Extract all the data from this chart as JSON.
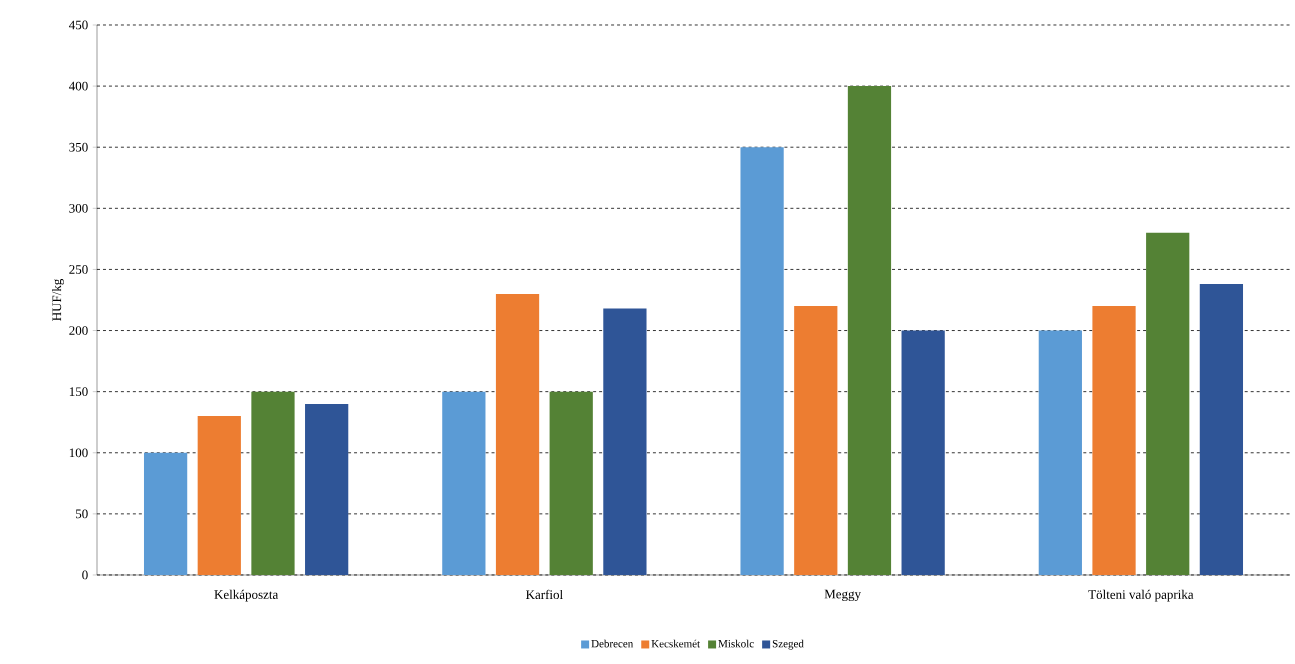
{
  "chart_data": {
    "type": "bar",
    "ylabel": "HUF/kg",
    "categories": [
      "Kelkáposzta",
      "Karfiol",
      "Meggy",
      "Tölteni való paprika"
    ],
    "series": [
      {
        "name": "Debrecen",
        "color": "#5b9bd5",
        "values": [
          100,
          150,
          350,
          200
        ]
      },
      {
        "name": "Kecskemét",
        "color": "#ed7d31",
        "values": [
          130,
          230,
          220,
          220
        ]
      },
      {
        "name": "Miskolc",
        "color": "#548235",
        "values": [
          150,
          150,
          400,
          280
        ]
      },
      {
        "name": "Szeged",
        "color": "#2f5597",
        "values": [
          140,
          218,
          200,
          238
        ]
      }
    ],
    "ylim": [
      0,
      450
    ],
    "yticks": [
      0,
      50,
      100,
      150,
      200,
      250,
      300,
      350,
      400,
      450
    ],
    "grid": "y",
    "legend": "bottom"
  }
}
